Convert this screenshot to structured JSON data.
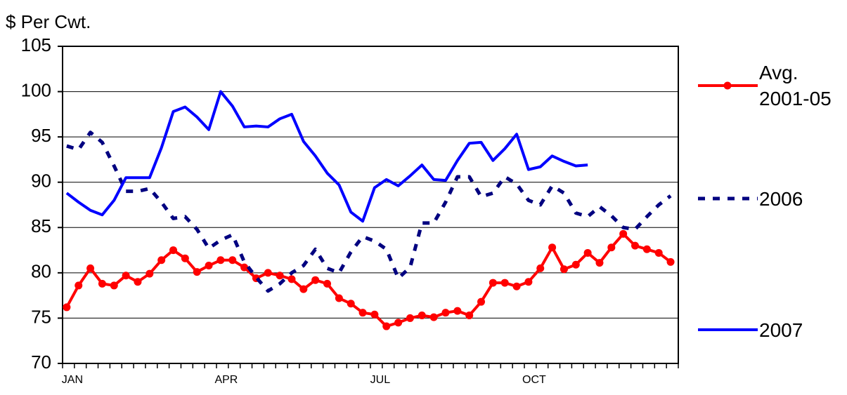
{
  "chart_data": {
    "type": "line",
    "y_axis_title": "$ Per Cwt.",
    "categories": [
      "JAN",
      null,
      null,
      null,
      null,
      null,
      null,
      null,
      null,
      null,
      null,
      null,
      null,
      "APR",
      null,
      null,
      null,
      null,
      null,
      null,
      null,
      null,
      null,
      null,
      null,
      null,
      "JUL",
      null,
      null,
      null,
      null,
      null,
      null,
      null,
      null,
      null,
      null,
      null,
      null,
      "OCT",
      null,
      null,
      null,
      null,
      null,
      null,
      null,
      null,
      null,
      null,
      null,
      null
    ],
    "ylim": [
      70,
      105
    ],
    "yticks": [
      70,
      75,
      80,
      85,
      90,
      95,
      100,
      105
    ],
    "grid": true,
    "series": [
      {
        "name": "Avg. 2001-05",
        "color": "#ff0000",
        "marker": "circle",
        "dashed": false,
        "values": [
          76.2,
          78.6,
          80.5,
          78.8,
          78.6,
          79.7,
          79.0,
          79.9,
          81.4,
          82.5,
          81.6,
          80.1,
          80.8,
          81.4,
          81.4,
          80.6,
          79.4,
          80.0,
          79.7,
          79.3,
          78.2,
          79.2,
          78.8,
          77.2,
          76.6,
          75.6,
          75.4,
          74.1,
          74.5,
          75.0,
          75.3,
          75.1,
          75.6,
          75.8,
          75.3,
          76.8,
          78.9,
          78.9,
          78.5,
          79.0,
          80.5,
          82.8,
          80.4,
          80.9,
          82.2,
          81.1,
          82.8,
          84.3,
          83.0,
          82.6,
          82.2,
          81.2
        ]
      },
      {
        "name": "2006",
        "color": "#000080",
        "marker": null,
        "dashed": true,
        "values": [
          94.0,
          93.6,
          95.5,
          94.4,
          91.8,
          89.0,
          89.0,
          89.3,
          87.8,
          86.0,
          86.2,
          84.8,
          82.7,
          83.6,
          84.2,
          81.2,
          79.5,
          78.0,
          78.8,
          80.0,
          80.8,
          82.6,
          80.5,
          80.0,
          82.3,
          84.0,
          83.5,
          82.6,
          79.4,
          80.6,
          85.5,
          85.5,
          87.8,
          90.6,
          90.6,
          88.4,
          88.8,
          90.6,
          89.8,
          88.0,
          87.5,
          89.6,
          88.8,
          86.6,
          86.2,
          87.3,
          86.3,
          85.0,
          84.8,
          86.2,
          87.5,
          88.5
        ]
      },
      {
        "name": "2007",
        "color": "#0000ff",
        "marker": null,
        "dashed": false,
        "values": [
          88.8,
          87.8,
          86.9,
          86.4,
          88.0,
          90.5,
          90.5,
          90.5,
          93.8,
          97.8,
          98.3,
          97.2,
          95.8,
          100.0,
          98.4,
          96.1,
          96.2,
          96.1,
          97.0,
          97.5,
          94.5,
          92.9,
          91.0,
          89.7,
          86.7,
          85.7,
          89.4,
          90.3,
          89.6,
          90.7,
          91.9,
          90.3,
          90.2,
          92.4,
          94.3,
          94.4,
          92.4,
          93.7,
          95.3,
          91.4,
          91.7,
          92.9,
          92.3,
          91.8,
          91.9,
          null,
          null,
          null,
          null,
          null,
          null,
          null
        ]
      }
    ]
  }
}
